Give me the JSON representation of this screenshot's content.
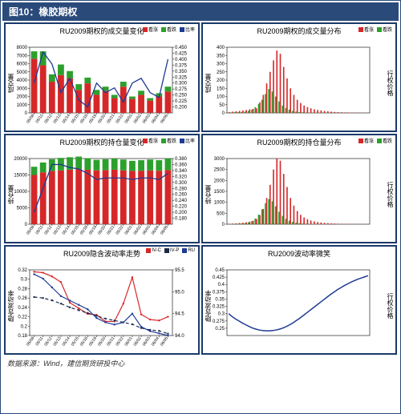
{
  "header": {
    "title": "图10：橡胶期权"
  },
  "source": {
    "text": "数据来源：Wind，建信期货研投中心"
  },
  "palette": {
    "border": "#1a3a6a",
    "red": "#d62728",
    "green": "#2ca02c",
    "blue": "#1f3a93",
    "dark_navy": "#1a2a4a",
    "grid": "#e0e0e0",
    "axis": "#000000"
  },
  "panels": [
    {
      "id": "p1",
      "title": "RU2009期权的成交量变化",
      "type": "stacked-bar-line",
      "ylabel": "成交量",
      "y2label": "",
      "x": [
        "05/08",
        "05/11",
        "05/12",
        "05/13",
        "05/14",
        "05/15",
        "05/18",
        "05/19",
        "05/20",
        "05/21",
        "05/22",
        "06/01",
        "06/02",
        "06/03",
        "06/04",
        "06/05"
      ],
      "series_bottom": {
        "label": "看涨",
        "color": "#d62728",
        "values": [
          6600,
          5800,
          3800,
          4600,
          4200,
          2800,
          3600,
          2200,
          2700,
          1800,
          3200,
          1700,
          2200,
          1500,
          2000,
          2600
        ]
      },
      "series_top": {
        "label": "看跌",
        "color": "#2ca02c",
        "values": [
          900,
          1700,
          900,
          1300,
          900,
          700,
          700,
          600,
          500,
          400,
          600,
          300,
          500,
          300,
          400,
          600
        ]
      },
      "line": {
        "label": "比率",
        "color": "#1f3a93",
        "values": [
          0.3,
          0.43,
          0.38,
          0.26,
          0.32,
          0.23,
          0.2,
          0.3,
          0.26,
          0.28,
          0.22,
          0.3,
          0.32,
          0.26,
          0.24,
          0.4
        ]
      },
      "ylim": [
        0,
        8000
      ],
      "ytick": 1000,
      "y2lim": [
        0.175,
        0.45
      ],
      "y2ticks": [
        0.2,
        0.225,
        0.25,
        0.275,
        0.3,
        0.325,
        0.35,
        0.375,
        0.4,
        0.425,
        0.45
      ]
    },
    {
      "id": "p2",
      "title": "RU2009期权的成交量分布",
      "type": "grouped-bar",
      "ylabel": "成交量",
      "y2label": "行权价格",
      "x_count": 42,
      "series_a": {
        "label": "看涨",
        "color": "#d62728",
        "values": [
          5,
          8,
          10,
          12,
          15,
          18,
          22,
          25,
          28,
          65,
          110,
          180,
          250,
          320,
          380,
          360,
          280,
          210,
          150,
          110,
          80,
          60,
          45,
          35,
          28,
          22,
          18,
          15,
          12,
          10,
          8,
          6,
          5,
          4,
          3,
          3,
          2,
          2,
          2,
          1,
          1,
          1
        ]
      },
      "series_b": {
        "label": "看跌",
        "color": "#2ca02c",
        "values": [
          2,
          3,
          4,
          5,
          6,
          8,
          12,
          20,
          35,
          55,
          80,
          115,
          145,
          130,
          100,
          70,
          45,
          30,
          20,
          12,
          8,
          5,
          4,
          3,
          2,
          2,
          1,
          1,
          1,
          1,
          1,
          1,
          0,
          0,
          0,
          0,
          0,
          0,
          0,
          0,
          0,
          0
        ]
      },
      "ylim": [
        0,
        400
      ],
      "ytick": 50
    },
    {
      "id": "p3",
      "title": "RU2009期权的持仓量变化",
      "type": "stacked-bar-line",
      "ylabel": "持仓量",
      "x": [
        "05/08",
        "05/11",
        "05/12",
        "05/13",
        "05/14",
        "05/15",
        "05/18",
        "05/19",
        "05/20",
        "05/21",
        "05/22",
        "06/01",
        "06/02",
        "06/03",
        "06/04",
        "06/05"
      ],
      "series_bottom": {
        "label": "看涨",
        "color": "#d62728",
        "values": [
          15000,
          15800,
          16200,
          16400,
          16600,
          16800,
          16600,
          16400,
          16500,
          16600,
          16400,
          16200,
          16300,
          16400,
          16300,
          16500
        ]
      },
      "series_top": {
        "label": "看跌",
        "color": "#2ca02c",
        "values": [
          2500,
          3000,
          3600,
          3800,
          3800,
          3800,
          3500,
          3200,
          3300,
          3400,
          3300,
          3100,
          3200,
          3300,
          3200,
          3500
        ]
      },
      "line": {
        "label": "比率",
        "color": "#1f3a93",
        "values": [
          0.2,
          0.28,
          0.36,
          0.36,
          0.35,
          0.345,
          0.33,
          0.31,
          0.315,
          0.315,
          0.315,
          0.31,
          0.315,
          0.315,
          0.31,
          0.33
        ]
      },
      "ylim": [
        0,
        20000
      ],
      "ytick": 5000,
      "y2lim": [
        0.16,
        0.38
      ],
      "y2ticks": [
        0.18,
        0.2,
        0.22,
        0.24,
        0.26,
        0.28,
        0.3,
        0.32,
        0.34,
        0.36,
        0.38
      ]
    },
    {
      "id": "p4",
      "title": "RU2009期权的持仓量分布",
      "type": "grouped-bar",
      "ylabel": "持仓量",
      "y2label": "行权价格",
      "x_count": 42,
      "series_a": {
        "label": "看涨",
        "color": "#d62728",
        "values": [
          20,
          30,
          40,
          55,
          70,
          90,
          120,
          160,
          240,
          420,
          700,
          1200,
          1800,
          2500,
          3000,
          2900,
          2300,
          1700,
          1200,
          850,
          600,
          430,
          310,
          230,
          170,
          130,
          100,
          80,
          62,
          50,
          40,
          32,
          26,
          21,
          17,
          14,
          11,
          9,
          7,
          5,
          4,
          3
        ]
      },
      "series_b": {
        "label": "看跌",
        "color": "#2ca02c",
        "values": [
          8,
          12,
          18,
          25,
          35,
          50,
          80,
          140,
          260,
          440,
          680,
          960,
          1150,
          1050,
          820,
          570,
          380,
          250,
          160,
          105,
          70,
          48,
          33,
          23,
          16,
          11,
          8,
          5,
          4,
          3,
          2,
          2,
          1,
          1,
          1,
          1,
          0,
          0,
          0,
          0,
          0,
          0
        ]
      },
      "ylim": [
        0,
        3000
      ],
      "ytick": 500
    },
    {
      "id": "p5",
      "title": "RU2009隐含波动率走势",
      "type": "multi-line",
      "ylabel": "隐含波动率",
      "y2label": "",
      "x": [
        "05/08",
        "05/11",
        "05/12",
        "05/13",
        "05/14",
        "05/15",
        "05/18",
        "05/19",
        "05/20",
        "05/21",
        "05/22",
        "06/01",
        "06/02",
        "06/03",
        "06/04",
        "06/05"
      ],
      "lines": [
        {
          "label": "IV-C",
          "color": "#d62728",
          "dash": "",
          "values": [
            0.316,
            0.314,
            0.306,
            0.294,
            0.25,
            0.238,
            0.226,
            0.224,
            0.21,
            0.21,
            0.248,
            0.304,
            0.225,
            0.214,
            0.212,
            0.22
          ]
        },
        {
          "label": "IV-P",
          "color": "#1a2a4a",
          "dash": "4,3",
          "values": [
            0.262,
            0.26,
            0.255,
            0.248,
            0.24,
            0.234,
            0.228,
            0.222,
            0.216,
            0.212,
            0.208,
            0.204,
            0.196,
            0.192,
            0.19,
            0.184
          ]
        },
        {
          "label": "RU",
          "color": "#1f3a93",
          "dash": "",
          "y2": true,
          "values": [
            95.4,
            95.3,
            95.1,
            94.9,
            94.8,
            94.7,
            94.6,
            94.4,
            94.3,
            94.25,
            94.3,
            94.5,
            94.2,
            94.1,
            94.05,
            94.0
          ]
        }
      ],
      "ylim": [
        0.18,
        0.32
      ],
      "yticks": [
        0.18,
        0.2,
        0.22,
        0.24,
        0.26,
        0.28,
        0.3,
        0.32
      ],
      "y2lim": [
        94.0,
        95.5
      ],
      "y2ticks": [
        94.0,
        94.5,
        95.0,
        95.5
      ]
    },
    {
      "id": "p6",
      "title": "RU2009波动率微笑",
      "type": "line",
      "ylabel": "隐含波动率",
      "y2label": "行权价格",
      "x_count": 42,
      "line": {
        "color": "#1f3a93",
        "values": [
          0.3,
          0.29,
          0.282,
          0.275,
          0.268,
          0.262,
          0.256,
          0.251,
          0.247,
          0.244,
          0.242,
          0.241,
          0.241,
          0.242,
          0.244,
          0.247,
          0.251,
          0.256,
          0.262,
          0.269,
          0.277,
          0.285,
          0.294,
          0.303,
          0.312,
          0.321,
          0.33,
          0.339,
          0.348,
          0.357,
          0.366,
          0.374,
          0.382,
          0.389,
          0.396,
          0.402,
          0.408,
          0.413,
          0.418,
          0.422,
          0.426,
          0.43
        ]
      },
      "ylim": [
        0.225,
        0.45
      ],
      "yticks": [
        0.25,
        0.275,
        0.3,
        0.325,
        0.35,
        0.375,
        0.4,
        0.425,
        0.45
      ]
    }
  ]
}
